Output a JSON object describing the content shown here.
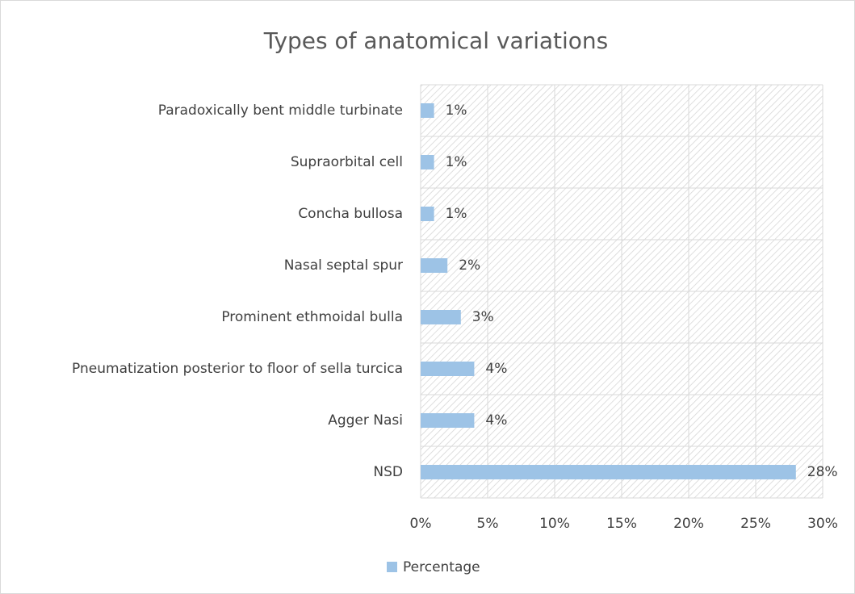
{
  "chart_data": {
    "type": "bar",
    "orientation": "horizontal",
    "title": "Types of anatomical variations",
    "categories": [
      "NSD",
      "Agger Nasi",
      "Pneumatization posterior to floor of sella turcica",
      "Prominent ethmoidal bulla",
      "Nasal septal spur",
      "Concha bullosa",
      "Supraorbital cell",
      "Paradoxically bent middle turbinate"
    ],
    "series": [
      {
        "name": "Percentage",
        "color": "#9dc3e6",
        "values": [
          28,
          4,
          4,
          3,
          2,
          1,
          1,
          1
        ],
        "value_labels": [
          "28%",
          "4%",
          "4%",
          "3%",
          "2%",
          "1%",
          "1%",
          "1%"
        ]
      }
    ],
    "xlim": [
      0,
      30
    ],
    "xticks": [
      {
        "value": 0,
        "label": "0%"
      },
      {
        "value": 5,
        "label": "5%"
      },
      {
        "value": 10,
        "label": "10%"
      },
      {
        "value": 15,
        "label": "15%"
      },
      {
        "value": 20,
        "label": "20%"
      },
      {
        "value": 25,
        "label": "25%"
      },
      {
        "value": 30,
        "label": "30%"
      }
    ],
    "grid": true,
    "legend": "bottom"
  }
}
